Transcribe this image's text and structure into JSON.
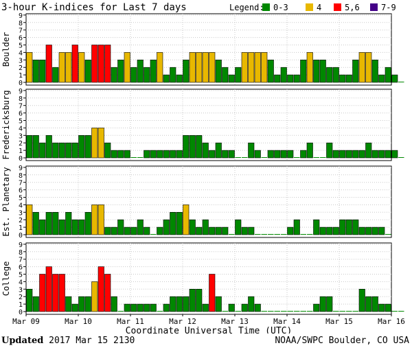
{
  "chart_data": {
    "type": "bar",
    "title": "3-hour K-indices for Last 7 days",
    "legend": {
      "label": "Legend:",
      "placement": "top-right",
      "items": [
        {
          "label": "0-3",
          "color": "#008800"
        },
        {
          "label": "4",
          "color": "#e8b800"
        },
        {
          "label": "5,6",
          "color": "#ff0000"
        },
        {
          "label": "7-9",
          "color": "#440088"
        }
      ]
    },
    "xlabel": "Coordinate Universal Time (UTC)",
    "x_ticks": [
      "Mar 09",
      "Mar 10",
      "Mar 11",
      "Mar 12",
      "Mar 13",
      "Mar 14",
      "Mar 15",
      "Mar 16"
    ],
    "ylim": [
      0,
      9
    ],
    "y_ticks": [
      "0",
      "1",
      "2",
      "3",
      "4",
      "5",
      "6",
      "7",
      "8",
      "9"
    ],
    "grid": true,
    "series": [
      {
        "name": "Boulder",
        "values": [
          4,
          3,
          3,
          5,
          2,
          4,
          4,
          5,
          4,
          3,
          5,
          5,
          5,
          2,
          3,
          4,
          2,
          3,
          2,
          3,
          4,
          1,
          2,
          1,
          3,
          4,
          4,
          4,
          4,
          3,
          2,
          1,
          2,
          4,
          4,
          4,
          4,
          3,
          1,
          2,
          1,
          1,
          3,
          4,
          3,
          3,
          2,
          2,
          1,
          1,
          3,
          4,
          4,
          3,
          1,
          2,
          1,
          0
        ]
      },
      {
        "name": "Fredericksburg",
        "values": [
          3,
          3,
          2,
          3,
          2,
          2,
          2,
          2,
          3,
          3,
          4,
          4,
          2,
          1,
          1,
          1,
          0,
          0,
          1,
          1,
          1,
          1,
          1,
          1,
          3,
          3,
          3,
          2,
          1,
          2,
          1,
          1,
          0,
          0,
          2,
          1,
          0,
          1,
          1,
          1,
          1,
          0,
          1,
          2,
          0,
          0,
          2,
          1,
          1,
          1,
          1,
          1,
          2,
          1,
          1,
          1,
          1,
          0
        ]
      },
      {
        "name": "Est. Planetary",
        "values": [
          4,
          3,
          2,
          3,
          3,
          2,
          3,
          2,
          2,
          3,
          4,
          4,
          1,
          1,
          2,
          1,
          1,
          2,
          1,
          0,
          1,
          2,
          3,
          3,
          4,
          2,
          1,
          2,
          1,
          1,
          1,
          0,
          2,
          1,
          1,
          0,
          0,
          0,
          0,
          0,
          1,
          2,
          0,
          0,
          2,
          1,
          1,
          1,
          2,
          2,
          2,
          1,
          1,
          1,
          1,
          0
        ]
      },
      {
        "name": "College",
        "values": [
          3,
          2,
          5,
          6,
          5,
          5,
          2,
          1,
          2,
          2,
          4,
          6,
          5,
          2,
          0,
          1,
          1,
          1,
          1,
          1,
          0,
          1,
          2,
          2,
          2,
          3,
          3,
          1,
          5,
          2,
          0,
          1,
          0,
          1,
          2,
          1,
          0,
          0,
          0,
          0,
          0,
          0,
          0,
          0,
          1,
          2,
          2,
          0,
          0,
          0,
          0,
          3,
          2,
          2,
          1,
          1,
          0,
          0
        ]
      }
    ]
  },
  "footer": {
    "updated_label": "Updated",
    "updated_value": " 2017 Mar 15 2130",
    "source": "NOAA/SWPC Boulder, CO USA"
  }
}
